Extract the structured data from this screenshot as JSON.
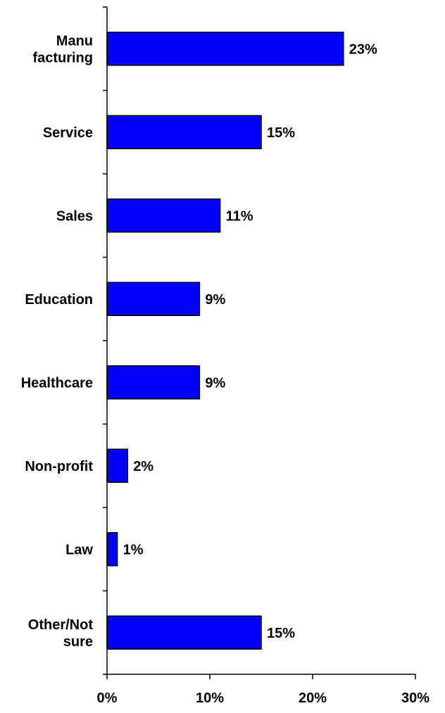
{
  "chart_data": {
    "type": "bar",
    "orientation": "horizontal",
    "categories": [
      [
        "Manu",
        "facturing"
      ],
      [
        "Service"
      ],
      [
        "Sales"
      ],
      [
        "Education"
      ],
      [
        "Healthcare"
      ],
      [
        "Non-profit"
      ],
      [
        "Law"
      ],
      [
        "Other/Not",
        "sure"
      ]
    ],
    "values": [
      23,
      15,
      11,
      9,
      9,
      2,
      1,
      15
    ],
    "data_labels": [
      "23%",
      "15%",
      "11%",
      "9%",
      "9%",
      "2%",
      "1%",
      "15%"
    ],
    "xlim": [
      0,
      30
    ],
    "x_ticks": [
      0,
      10,
      20,
      30
    ],
    "x_tick_labels": [
      "0%",
      "10%",
      "20%",
      "30%"
    ],
    "grid": false,
    "legend": "none",
    "colors": {
      "bar_fill": "#0000FF",
      "bar_stroke": "#000000",
      "axis": "#000000"
    }
  }
}
